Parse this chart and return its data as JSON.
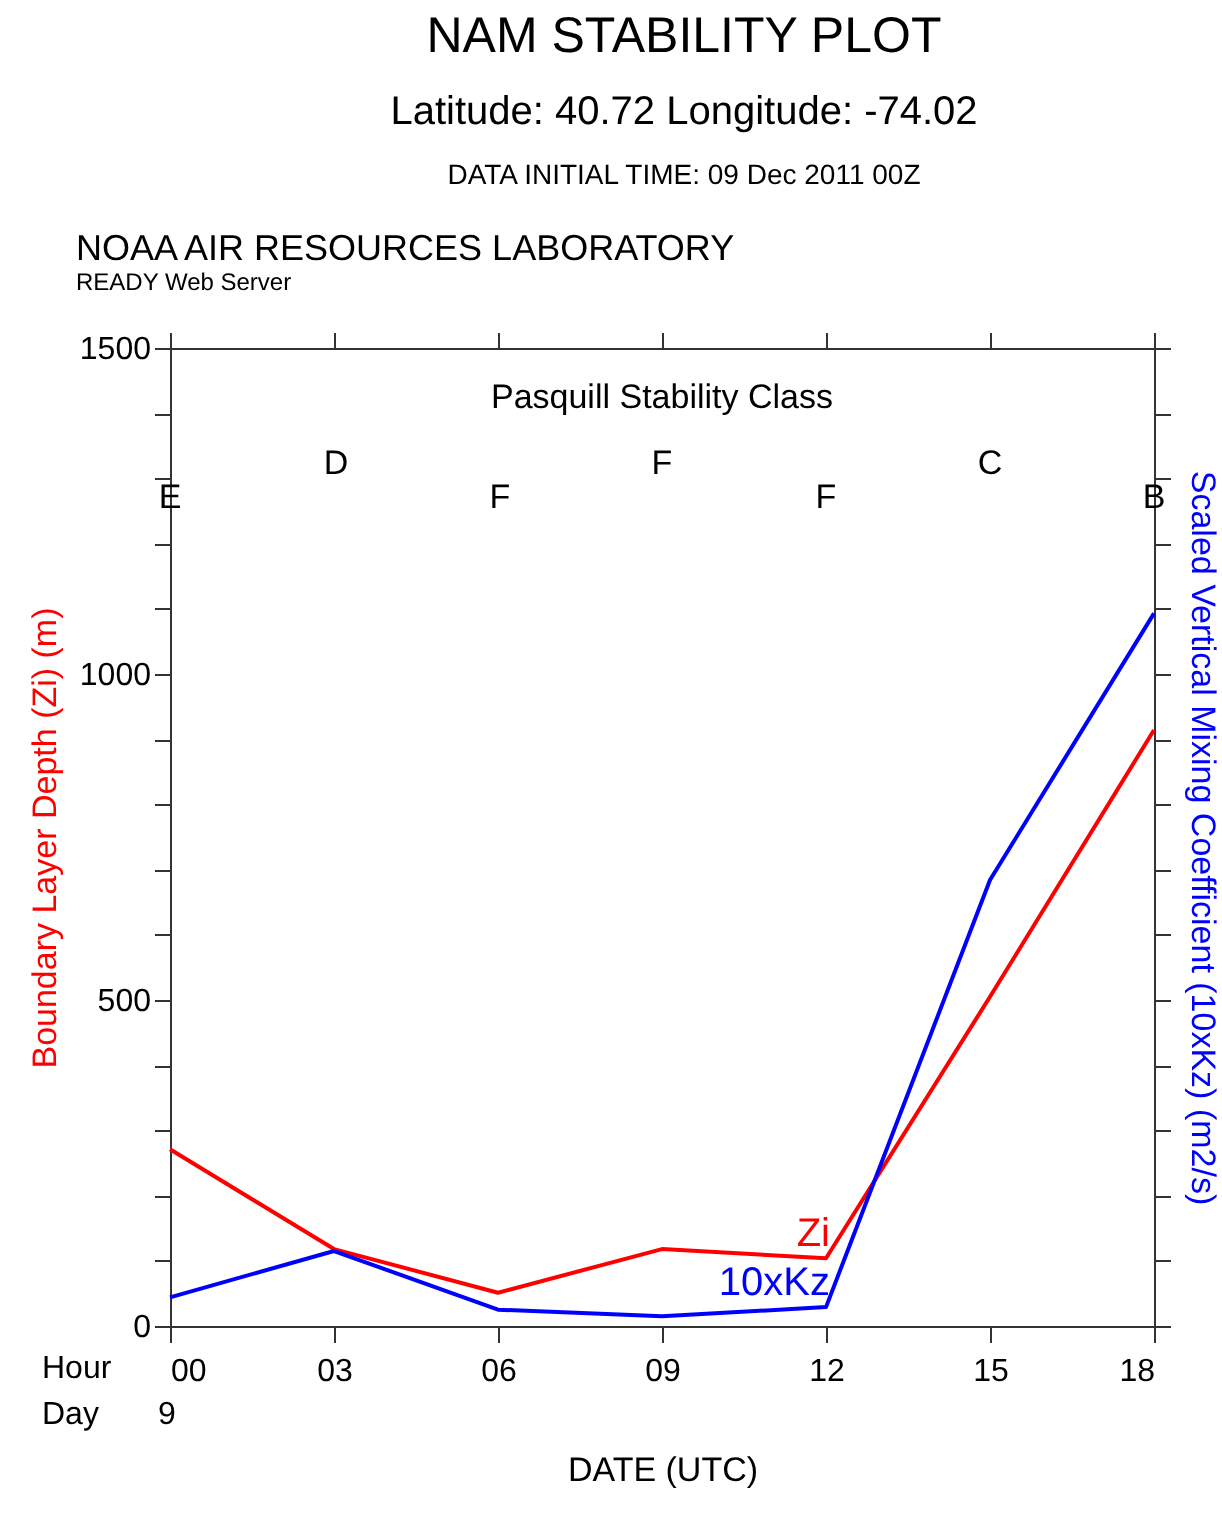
{
  "chart_data": {
    "type": "line",
    "title": "NAM STABILITY PLOT",
    "subtitle": "Latitude: 40.72 Longitude: -74.02",
    "xlabel": "DATE (UTC)",
    "ylabel": "Boundary Layer Depth (Zi) (m)",
    "y2label": "Scaled Vertical Mixing Coefficient (10xKz) (m2/s)",
    "x": [
      0,
      3,
      6,
      9,
      12,
      15,
      18
    ],
    "series": [
      {
        "name": "Zi",
        "color": "#ff0000",
        "values": [
          271,
          118,
          51,
          118,
          104,
          505,
          914
        ]
      },
      {
        "name": "10xKz",
        "color": "#0000ff",
        "values": [
          44,
          115,
          25,
          15,
          29,
          684,
          1093
        ]
      }
    ],
    "xlim": [
      0,
      18
    ],
    "xticks": [
      {
        "value": 0,
        "label": "00"
      },
      {
        "value": 3,
        "label": "03"
      },
      {
        "value": 6,
        "label": "06"
      },
      {
        "value": 9,
        "label": "09"
      },
      12,
      15,
      18
    ],
    "ylim": [
      0,
      1500
    ],
    "yticks": [
      0,
      {
        "value": 100,
        "label": null
      },
      {
        "value": 200,
        "label": null
      },
      {
        "value": 300,
        "label": null
      },
      {
        "value": 400,
        "label": null
      },
      500,
      {
        "value": 600,
        "label": null
      },
      {
        "value": 700,
        "label": null
      },
      {
        "value": 800,
        "label": null
      },
      {
        "value": 900,
        "label": null
      },
      1000,
      {
        "value": 1100,
        "label": null
      },
      {
        "value": 1200,
        "label": null
      },
      {
        "value": 1300,
        "label": null
      },
      {
        "value": 1400,
        "label": null
      },
      1500
    ],
    "grid": false,
    "legend": false,
    "annotations": [
      "DATA INITIAL TIME: 09 Dec 2011 00Z",
      "NOAA AIR RESOURCES LABORATORY",
      "READY Web Server",
      "Hour",
      "Day",
      "9",
      "Pasquill Stability Class",
      "E",
      "D",
      "F",
      "F",
      "F",
      "C",
      "B"
    ]
  }
}
